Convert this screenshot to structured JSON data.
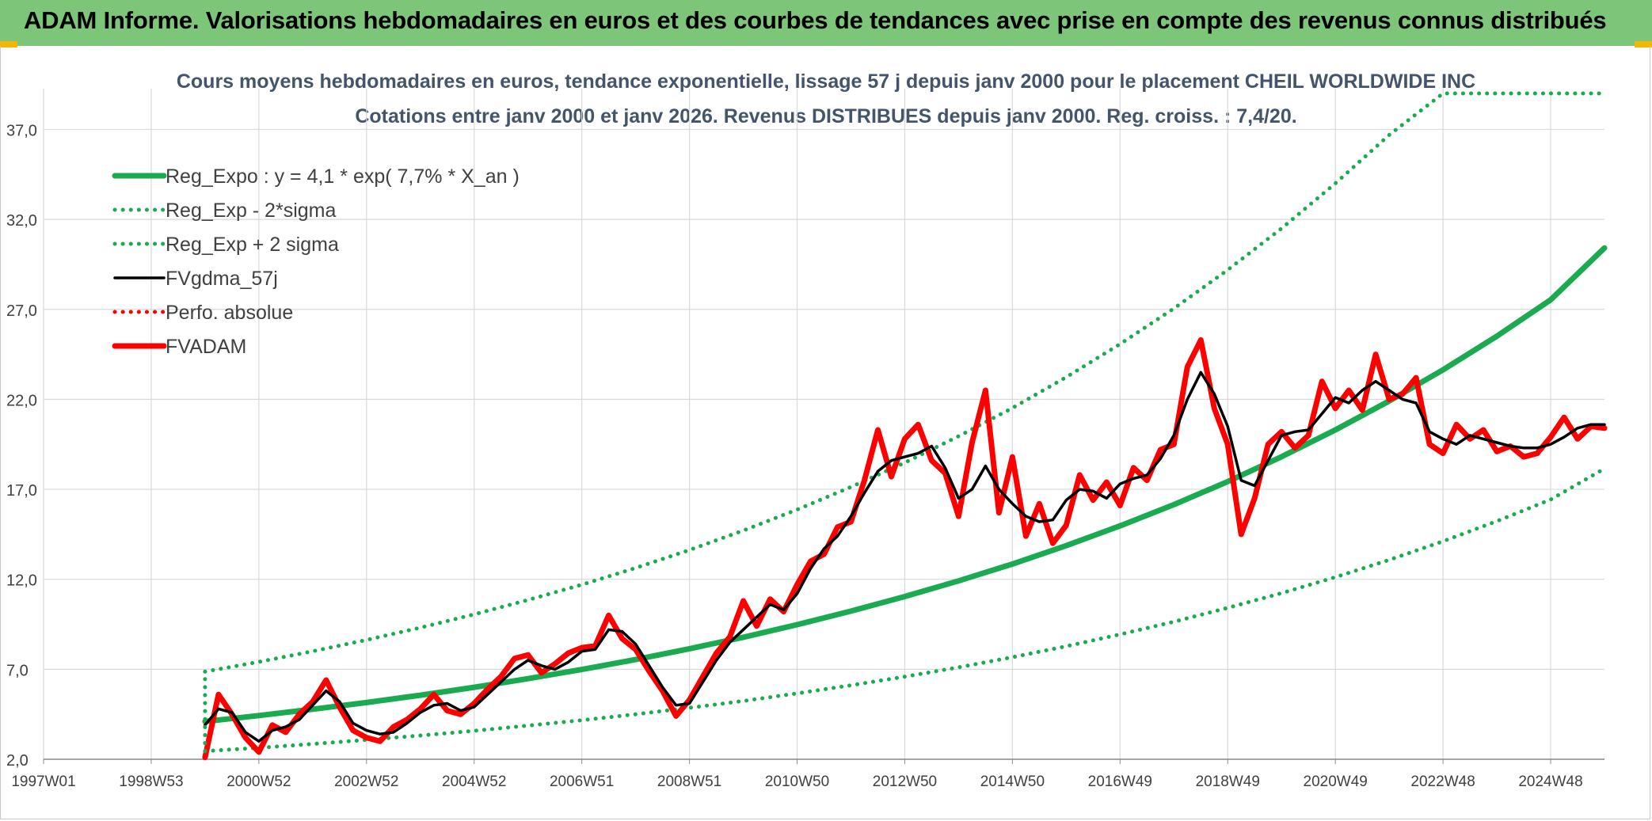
{
  "header": {
    "title": "ADAM Informe. Valorisations hebdomadaires en euros et des courbes de tendances avec prise en compte des revenus connus distribués"
  },
  "chart_data": {
    "type": "line",
    "title": "Cours moyens hebdomadaires en euros, tendance exponentielle, lissage 57 j depuis janv 2000 pour le placement CHEIL WORLDWIDE INC",
    "subtitle": "Cotations entre janv 2000 et janv 2026. Revenus DISTRIBUES depuis janv 2000. Reg. croiss. : 7,4/20.",
    "xlabel": "",
    "ylabel": "",
    "ylim": [
      2,
      39
    ],
    "y_ticks": [
      "2,0",
      "7,0",
      "12,0",
      "17,0",
      "22,0",
      "27,0",
      "32,0",
      "37,0"
    ],
    "x_range_years": [
      1997.0,
      2026.0
    ],
    "x_ticks": [
      "1997W01",
      "1998W53",
      "2000W52",
      "2002W52",
      "2004W52",
      "2006W51",
      "2008W51",
      "2010W50",
      "2012W50",
      "2014W50",
      "2016W49",
      "2018W49",
      "2020W49",
      "2022W48",
      "2024W48"
    ],
    "x_tick_years": [
      1997.0,
      1999.0,
      2001.0,
      2003.0,
      2005.0,
      2007.0,
      2009.0,
      2011.0,
      2013.0,
      2015.0,
      2017.0,
      2019.0,
      2021.0,
      2023.0,
      2025.0
    ],
    "grid": true,
    "legend_position": "top-left",
    "series": [
      {
        "name": "Reg_Expo : y = 4,1 * exp( 7,7% *  X_an )",
        "color": "#1aaa50",
        "style": "solid-thick",
        "x": [
          2000.0,
          2001.0,
          2002.0,
          2003.0,
          2004.0,
          2005.0,
          2006.0,
          2007.0,
          2008.0,
          2009.0,
          2010.0,
          2011.0,
          2012.0,
          2013.0,
          2014.0,
          2015.0,
          2016.0,
          2017.0,
          2018.0,
          2019.0,
          2020.0,
          2021.0,
          2022.0,
          2023.0,
          2024.0,
          2025.0,
          2026.0
        ],
        "values": [
          4.1,
          4.43,
          4.78,
          5.15,
          5.56,
          6.0,
          6.48,
          6.99,
          7.54,
          8.14,
          8.78,
          9.48,
          10.23,
          11.04,
          11.91,
          12.85,
          13.87,
          14.97,
          16.15,
          17.43,
          18.81,
          20.3,
          21.91,
          23.64,
          25.51,
          27.53,
          30.41
        ]
      },
      {
        "name": "Reg_Exp - 2*sigma",
        "color": "#1aaa50",
        "style": "dotted",
        "x": [
          2000.0,
          2001.0,
          2002.0,
          2003.0,
          2004.0,
          2005.0,
          2006.0,
          2007.0,
          2008.0,
          2009.0,
          2010.0,
          2011.0,
          2012.0,
          2013.0,
          2014.0,
          2015.0,
          2016.0,
          2017.0,
          2018.0,
          2019.0,
          2020.0,
          2021.0,
          2022.0,
          2023.0,
          2024.0,
          2025.0,
          2026.0
        ],
        "values": [
          2.45,
          2.64,
          2.85,
          3.08,
          3.32,
          3.58,
          3.87,
          4.17,
          4.5,
          4.86,
          5.24,
          5.66,
          6.11,
          6.59,
          7.11,
          7.67,
          8.28,
          8.94,
          9.64,
          10.41,
          11.23,
          12.12,
          13.08,
          14.11,
          15.23,
          16.43,
          18.15
        ]
      },
      {
        "name": "Reg_Exp + 2 sigma",
        "color": "#1aaa50",
        "style": "dotted",
        "x": [
          2000.0,
          2001.0,
          2002.0,
          2003.0,
          2004.0,
          2005.0,
          2006.0,
          2007.0,
          2008.0,
          2009.0,
          2010.0,
          2011.0,
          2012.0,
          2013.0,
          2014.0,
          2015.0,
          2016.0,
          2017.0,
          2018.0,
          2019.0,
          2020.0,
          2021.0,
          2022.0,
          2023.0,
          2024.0,
          2025.0,
          2026.0
        ],
        "values": [
          6.87,
          7.41,
          8.0,
          8.63,
          9.31,
          10.05,
          10.85,
          11.7,
          12.63,
          13.63,
          14.71,
          15.87,
          17.13,
          18.48,
          19.95,
          21.52,
          23.23,
          25.07,
          27.05,
          29.19,
          31.5,
          34.0,
          36.69,
          39.0,
          39.0,
          39.0,
          39.0
        ]
      },
      {
        "name": "FVgdma_57j",
        "color": "#000000",
        "style": "solid",
        "x": [
          2000.0,
          2000.25,
          2000.5,
          2000.75,
          2001.0,
          2001.25,
          2001.5,
          2001.75,
          2002.0,
          2002.25,
          2002.5,
          2002.75,
          2003.0,
          2003.25,
          2003.5,
          2003.75,
          2004.0,
          2004.25,
          2004.5,
          2004.75,
          2005.0,
          2005.25,
          2005.5,
          2005.75,
          2006.0,
          2006.25,
          2006.5,
          2006.75,
          2007.0,
          2007.25,
          2007.5,
          2007.75,
          2008.0,
          2008.25,
          2008.5,
          2008.75,
          2009.0,
          2009.25,
          2009.5,
          2009.75,
          2010.0,
          2010.25,
          2010.5,
          2010.75,
          2011.0,
          2011.25,
          2011.5,
          2011.75,
          2012.0,
          2012.25,
          2012.5,
          2012.75,
          2013.0,
          2013.25,
          2013.5,
          2013.75,
          2014.0,
          2014.25,
          2014.5,
          2014.75,
          2015.0,
          2015.25,
          2015.5,
          2015.75,
          2016.0,
          2016.25,
          2016.5,
          2016.75,
          2017.0,
          2017.25,
          2017.5,
          2017.75,
          2018.0,
          2018.25,
          2018.5,
          2018.75,
          2019.0,
          2019.25,
          2019.5,
          2019.75,
          2020.0,
          2020.25,
          2020.5,
          2020.75,
          2021.0,
          2021.25,
          2021.5,
          2021.75,
          2022.0,
          2022.25,
          2022.5,
          2022.75,
          2023.0,
          2023.25,
          2023.5,
          2023.75,
          2024.0,
          2024.25,
          2024.5,
          2024.75,
          2025.0,
          2025.25,
          2025.5,
          2025.75,
          2026.0
        ],
        "values": [
          3.9,
          4.8,
          4.6,
          3.5,
          3.0,
          3.6,
          3.8,
          4.2,
          5.0,
          5.8,
          5.2,
          4.0,
          3.6,
          3.4,
          3.5,
          4.0,
          4.6,
          5.0,
          5.1,
          4.7,
          4.9,
          5.6,
          6.3,
          7.0,
          7.5,
          7.2,
          7.0,
          7.4,
          8.0,
          8.1,
          9.2,
          9.1,
          8.4,
          7.2,
          6.0,
          5.0,
          5.1,
          6.3,
          7.5,
          8.5,
          9.2,
          9.9,
          10.6,
          10.3,
          11.2,
          12.6,
          13.7,
          14.4,
          15.5,
          16.8,
          18.0,
          18.6,
          18.8,
          19.0,
          19.4,
          18.2,
          16.5,
          17.0,
          18.3,
          17.0,
          16.2,
          15.5,
          15.2,
          15.3,
          16.4,
          17.0,
          16.9,
          16.5,
          17.3,
          17.6,
          17.8,
          18.7,
          20.0,
          22.0,
          23.5,
          22.3,
          20.5,
          17.5,
          17.2,
          18.6,
          20.0,
          20.2,
          20.3,
          21.2,
          22.1,
          21.8,
          22.5,
          23.0,
          22.5,
          22.0,
          21.8,
          20.2,
          19.8,
          19.5,
          20.0,
          19.8,
          19.6,
          19.4,
          19.3,
          19.3,
          19.5,
          19.9,
          20.4,
          20.6,
          20.6
        ]
      },
      {
        "name": "Perfo. absolue",
        "color": "#ff0000",
        "style": "dotted",
        "x": [
          1999.92,
          2026.0
        ],
        "values": [
          2.0,
          2.0
        ]
      },
      {
        "name": "FVADAM",
        "color": "#ff0000",
        "style": "solid-thick",
        "x": [
          2000.0,
          2000.25,
          2000.5,
          2000.75,
          2001.0,
          2001.25,
          2001.5,
          2001.75,
          2002.0,
          2002.25,
          2002.5,
          2002.75,
          2003.0,
          2003.25,
          2003.5,
          2003.75,
          2004.0,
          2004.25,
          2004.5,
          2004.75,
          2005.0,
          2005.25,
          2005.5,
          2005.75,
          2006.0,
          2006.25,
          2006.5,
          2006.75,
          2007.0,
          2007.25,
          2007.5,
          2007.75,
          2008.0,
          2008.25,
          2008.5,
          2008.75,
          2009.0,
          2009.25,
          2009.5,
          2009.75,
          2010.0,
          2010.25,
          2010.5,
          2010.75,
          2011.0,
          2011.25,
          2011.5,
          2011.75,
          2012.0,
          2012.25,
          2012.5,
          2012.75,
          2013.0,
          2013.25,
          2013.5,
          2013.75,
          2014.0,
          2014.25,
          2014.5,
          2014.75,
          2015.0,
          2015.25,
          2015.5,
          2015.75,
          2016.0,
          2016.25,
          2016.5,
          2016.75,
          2017.0,
          2017.25,
          2017.5,
          2017.75,
          2018.0,
          2018.25,
          2018.5,
          2018.75,
          2019.0,
          2019.25,
          2019.5,
          2019.75,
          2020.0,
          2020.25,
          2020.5,
          2020.75,
          2021.0,
          2021.25,
          2021.5,
          2021.75,
          2022.0,
          2022.25,
          2022.5,
          2022.75,
          2023.0,
          2023.25,
          2023.5,
          2023.75,
          2024.0,
          2024.25,
          2024.5,
          2024.75,
          2025.0,
          2025.25,
          2025.5,
          2025.75,
          2026.0
        ],
        "values": [
          2.1,
          5.6,
          4.5,
          3.2,
          2.4,
          3.9,
          3.5,
          4.5,
          5.2,
          6.4,
          4.9,
          3.6,
          3.2,
          3.0,
          3.8,
          4.2,
          4.8,
          5.6,
          4.7,
          4.5,
          5.1,
          5.9,
          6.6,
          7.6,
          7.8,
          6.8,
          7.3,
          7.9,
          8.2,
          8.3,
          10.0,
          8.7,
          8.1,
          6.9,
          5.8,
          4.4,
          5.3,
          6.6,
          7.9,
          8.8,
          10.8,
          9.4,
          10.9,
          10.2,
          11.7,
          13.0,
          13.4,
          14.9,
          15.2,
          17.5,
          20.3,
          17.7,
          19.8,
          20.6,
          18.6,
          17.9,
          15.5,
          19.6,
          22.5,
          15.7,
          18.8,
          14.4,
          16.2,
          14.0,
          15.0,
          17.8,
          16.4,
          17.4,
          16.1,
          18.2,
          17.5,
          19.2,
          19.5,
          23.8,
          25.3,
          21.5,
          19.5,
          14.5,
          16.5,
          19.5,
          20.2,
          19.3,
          20.0,
          23.0,
          21.5,
          22.5,
          21.4,
          24.5,
          22.0,
          22.3,
          23.2,
          19.5,
          19.0,
          20.6,
          19.8,
          20.3,
          19.1,
          19.4,
          18.8,
          19.0,
          19.9,
          21.0,
          19.8,
          20.5,
          20.4
        ]
      }
    ]
  }
}
